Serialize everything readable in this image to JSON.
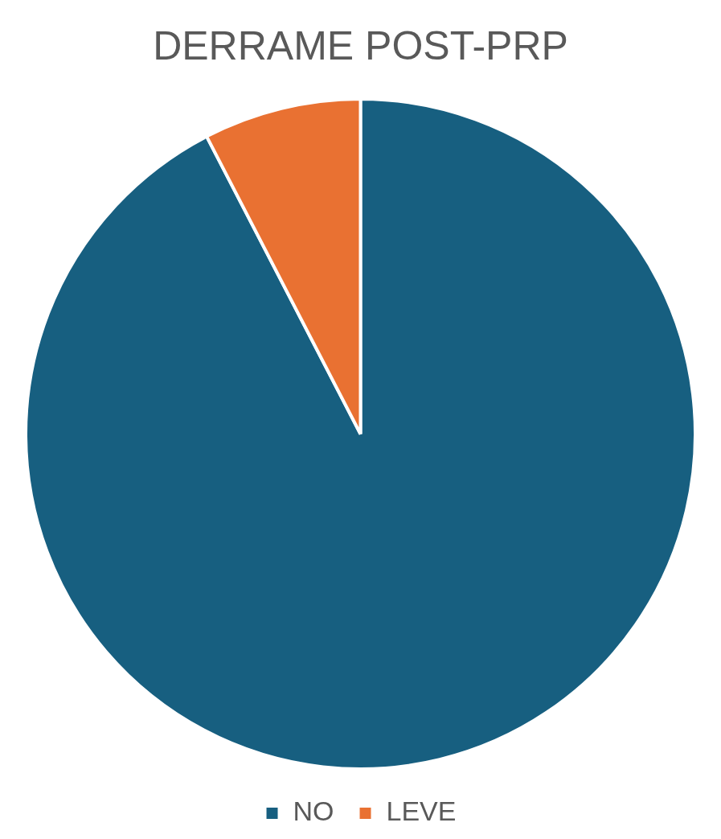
{
  "chart_data": {
    "type": "pie",
    "title": "DERRAME POST-PRP",
    "categories": [
      "NO",
      "LEVE"
    ],
    "values": [
      92.4,
      7.6
    ],
    "colors": [
      "#175f80",
      "#e97132"
    ],
    "legend": "bottom"
  }
}
